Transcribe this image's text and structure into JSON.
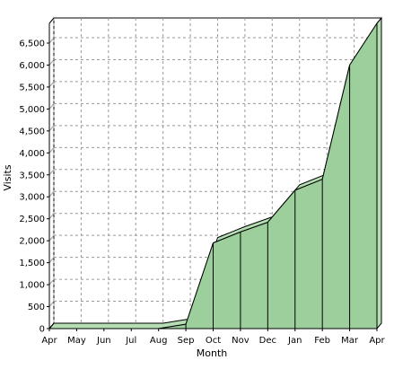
{
  "colors": {
    "area_fill": "#9ccf9c",
    "area_side": "#b5deb5",
    "area_stroke": "#000000",
    "grid": "#9a9a9a",
    "axis": "#000000",
    "background": "#ffffff"
  },
  "chart_data": {
    "type": "area",
    "style": "3d",
    "title": "",
    "xlabel": "Month",
    "ylabel": "Visits",
    "categories": [
      "Apr",
      "May",
      "Jun",
      "Jul",
      "Aug",
      "Sep",
      "Oct",
      "Nov",
      "Dec",
      "Jan",
      "Feb",
      "Mar",
      "Apr"
    ],
    "series": [
      {
        "values": [
          0,
          0,
          0,
          0,
          0,
          100,
          1950,
          2200,
          2420,
          3150,
          3400,
          6000,
          6950
        ]
      }
    ],
    "y_ticks": [
      0,
      500,
      1000,
      1500,
      2000,
      2500,
      3000,
      3500,
      4000,
      4500,
      5000,
      5500,
      6000,
      6500
    ],
    "y_tick_labels": [
      "0",
      "500",
      "1,000",
      "1,500",
      "2,000",
      "2,500",
      "3,000",
      "3,500",
      "4,000",
      "4,500",
      "5,000",
      "5,500",
      "6,000",
      "6,500"
    ],
    "ylim": [
      0,
      6950
    ],
    "grid": true,
    "legend": "none"
  }
}
